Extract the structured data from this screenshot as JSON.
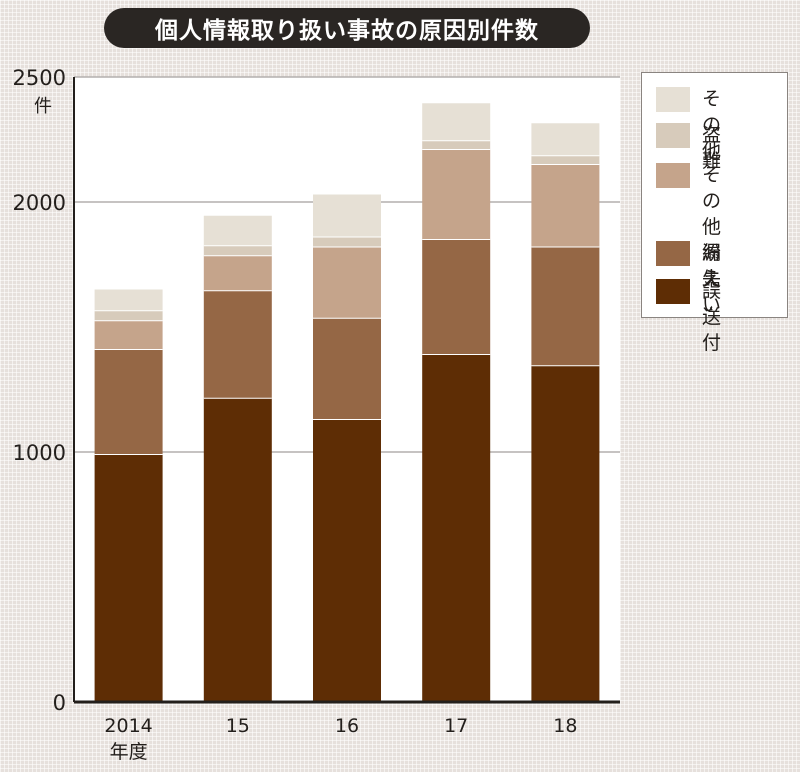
{
  "chart_data": {
    "type": "bar",
    "stacked": true,
    "title": "個人情報取り扱い事故の原因別件数",
    "ylabel": "件",
    "xlabel": "年度",
    "ylim": [
      0,
      2500
    ],
    "yticks": [
      "0",
      "1000",
      "2000",
      "2500"
    ],
    "ytick_values": [
      0,
      1000,
      2000,
      2500
    ],
    "categories": [
      "2014",
      "15",
      "16",
      "17",
      "18"
    ],
    "grid": true,
    "legend_position": "top-right",
    "series": [
      {
        "name": "誤送付",
        "color": "#5e2d05",
        "values": [
          990,
          1215,
          1130,
          1390,
          1345
        ]
      },
      {
        "name": "紛失",
        "color": "#956745",
        "values": [
          420,
          430,
          405,
          460,
          475
        ]
      },
      {
        "name": "その他\n漏えい",
        "color": "#c5a48b",
        "values": [
          115,
          140,
          285,
          360,
          330
        ]
      },
      {
        "name": "盗難",
        "color": "#d7cbbb",
        "values": [
          40,
          40,
          40,
          35,
          35
        ]
      },
      {
        "name": "その他",
        "color": "#e6e0d5",
        "values": [
          85,
          120,
          170,
          150,
          130
        ]
      }
    ]
  }
}
